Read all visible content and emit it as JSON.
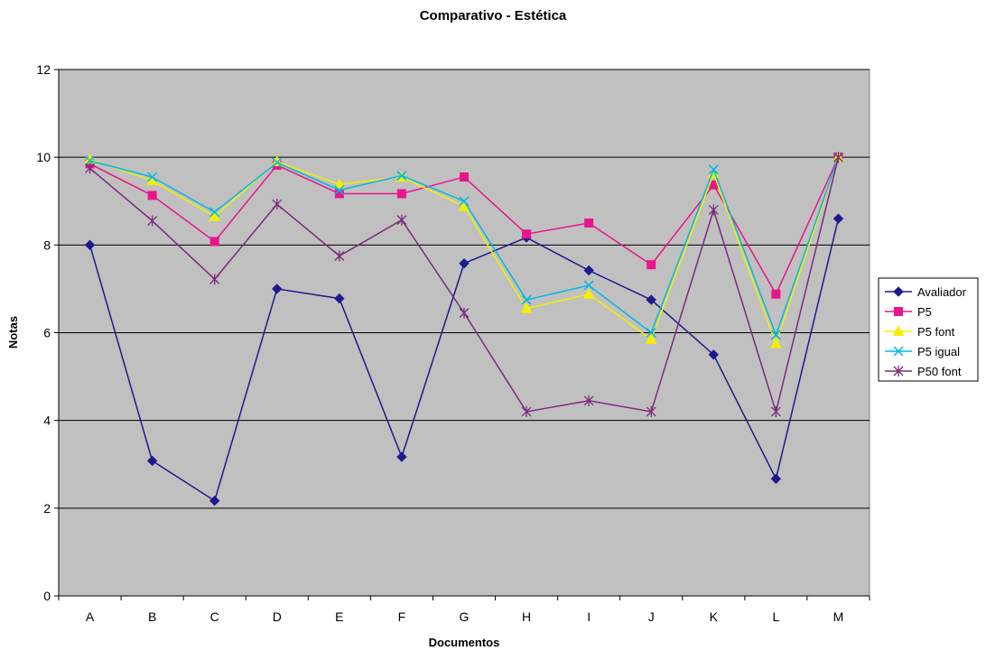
{
  "chart_data": {
    "type": "line",
    "title": "Comparativo - Estética",
    "xlabel": "Documentos",
    "ylabel": "Notas",
    "categories": [
      "A",
      "B",
      "C",
      "D",
      "E",
      "F",
      "G",
      "H",
      "I",
      "J",
      "K",
      "L",
      "M"
    ],
    "ylim": [
      0,
      12
    ],
    "yticks": [
      0,
      2,
      4,
      6,
      8,
      10,
      12
    ],
    "grid": true,
    "legend_position": "right",
    "plot_background": "#c0c0c0",
    "series": [
      {
        "name": "Avaliador",
        "color": "#1f1a8c",
        "marker": "diamond",
        "values": [
          8.0,
          3.08,
          2.17,
          7.0,
          6.78,
          3.17,
          7.58,
          8.17,
          7.42,
          6.75,
          5.5,
          2.67,
          8.6
        ]
      },
      {
        "name": "P5",
        "color": "#e8158c",
        "marker": "square",
        "values": [
          9.85,
          9.13,
          8.08,
          9.82,
          9.17,
          9.17,
          9.55,
          8.25,
          8.5,
          7.55,
          9.37,
          6.88,
          10.0
        ]
      },
      {
        "name": "P5 font",
        "color": "#f5f000",
        "marker": "triangle",
        "values": [
          9.95,
          9.47,
          8.65,
          9.9,
          9.38,
          9.55,
          8.88,
          6.55,
          6.88,
          5.85,
          9.63,
          5.75,
          10.0
        ]
      },
      {
        "name": "P5 igual",
        "color": "#00b8e6",
        "marker": "x",
        "values": [
          9.92,
          9.55,
          8.75,
          9.88,
          9.25,
          9.58,
          9.0,
          6.75,
          7.08,
          6.0,
          9.72,
          5.95,
          10.0
        ]
      },
      {
        "name": "P50 font",
        "color": "#7b2a7b",
        "marker": "star",
        "values": [
          9.75,
          8.55,
          7.22,
          8.93,
          7.75,
          8.57,
          6.45,
          4.2,
          4.45,
          4.2,
          8.8,
          4.2,
          10.0
        ]
      }
    ]
  }
}
